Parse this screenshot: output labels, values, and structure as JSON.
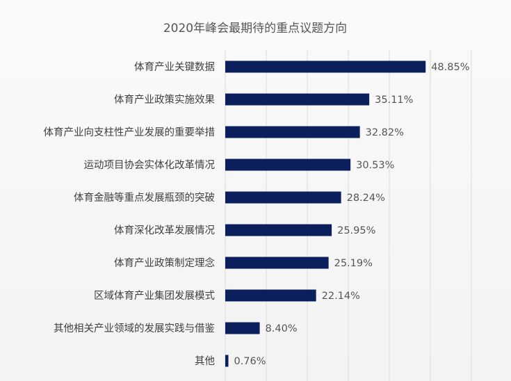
{
  "chart_data": {
    "type": "bar",
    "orientation": "horizontal",
    "title": "2020年峰会最期待的重点议题方向",
    "categories": [
      "体育产业关键数据",
      "体育产业政策实施效果",
      "体育产业向支柱性产业发展的重要举措",
      "运动项目协会实体化改革情况",
      "体育金融等重点发展瓶颈的突破",
      "体育深化改革发展情况",
      "体育产业政策制定理念",
      "区域体育产业集团发展模式",
      "其他相关产业领域的发展实践与借鉴",
      "其他"
    ],
    "values": [
      48.85,
      35.11,
      32.82,
      30.53,
      28.24,
      25.95,
      25.19,
      22.14,
      8.4,
      0.76
    ],
    "value_labels": [
      "48.85%",
      "35.11%",
      "32.82%",
      "30.53%",
      "28.24%",
      "25.95%",
      "25.19%",
      "22.14%",
      "8.40%",
      "0.76%"
    ],
    "xlabel": "",
    "ylabel": "",
    "xlim": [
      0,
      60
    ],
    "grid": true,
    "legend": "none",
    "bar_color": "#0b1f5c",
    "grid_color": "#dcdcdc"
  }
}
